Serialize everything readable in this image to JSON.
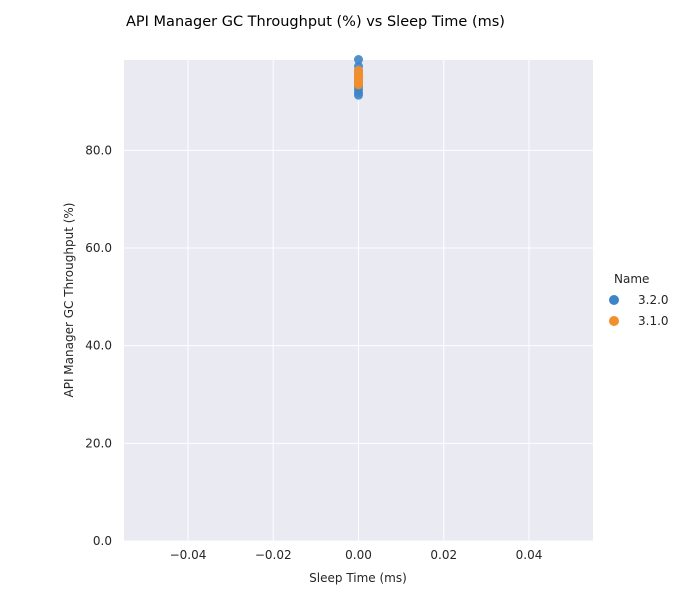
{
  "chart_data": {
    "type": "scatter",
    "title": "API Manager GC Throughput (%) vs Sleep Time (ms)",
    "xlabel": "Sleep Time (ms)",
    "ylabel": "API Manager GC Throughput (%)",
    "xlim": [
      -0.055,
      0.055
    ],
    "ylim": [
      0,
      98.5
    ],
    "xticks": [
      -0.04,
      -0.02,
      0.0,
      0.02,
      0.04
    ],
    "xtick_labels": [
      "−0.04",
      "−0.02",
      "0.00",
      "0.02",
      "0.04"
    ],
    "yticks": [
      0,
      20,
      40,
      60,
      80
    ],
    "ytick_labels": [
      "0.0",
      "20.0",
      "40.0",
      "60.0",
      "80.0"
    ],
    "grid": true,
    "legend": {
      "title": "Name",
      "placement": "right"
    },
    "series": [
      {
        "name": "3.2.0",
        "color": "#3d85c6",
        "points": [
          {
            "x": 0,
            "y": 98.6
          },
          {
            "x": 0,
            "y": 97.2
          },
          {
            "x": 0,
            "y": 96.3
          },
          {
            "x": 0,
            "y": 95.6
          },
          {
            "x": 0,
            "y": 94.9
          },
          {
            "x": 0,
            "y": 94.2
          },
          {
            "x": 0,
            "y": 93.6
          },
          {
            "x": 0,
            "y": 93.0
          },
          {
            "x": 0,
            "y": 92.4
          },
          {
            "x": 0,
            "y": 91.8
          },
          {
            "x": 0,
            "y": 91.3
          }
        ]
      },
      {
        "name": "3.1.0",
        "color": "#f28e2b",
        "points": [
          {
            "x": 0,
            "y": 96.4
          },
          {
            "x": 0,
            "y": 95.9
          },
          {
            "x": 0,
            "y": 95.4
          },
          {
            "x": 0,
            "y": 95.0
          },
          {
            "x": 0,
            "y": 94.6
          },
          {
            "x": 0,
            "y": 94.2
          },
          {
            "x": 0,
            "y": 93.8
          },
          {
            "x": 0,
            "y": 93.4
          }
        ]
      }
    ]
  }
}
